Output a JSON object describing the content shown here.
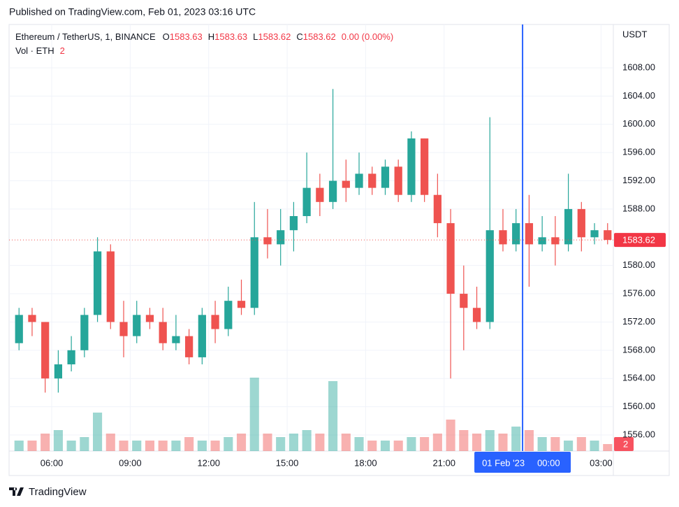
{
  "header": {
    "published": "Published on TradingView.com, Feb 01, 2023 03:16 UTC"
  },
  "footer": {
    "brand": "TradingView"
  },
  "chart_data": {
    "type": "candlestick",
    "symbol": "Ethereum / TetherUS, 1, BINANCE",
    "legend": {
      "o_label": "O",
      "open": 1583.63,
      "h_label": "H",
      "high": 1583.63,
      "l_label": "L",
      "low": 1583.62,
      "c_label": "C",
      "close": 1583.62,
      "change": "0.00 (0.00%)",
      "vol_label": "Vol · ETH",
      "volume": 2
    },
    "price_unit": "USDT",
    "last_price": 1583.62,
    "crosshair": {
      "x": 24,
      "date": "01 Feb '23",
      "time": "00:00",
      "color": "#2962ff"
    },
    "up_color": "#26a69a",
    "down_color": "#ef5350",
    "x": [
      4.75,
      5.25,
      5.75,
      6.25,
      6.75,
      7.25,
      7.75,
      8.25,
      8.75,
      9.25,
      9.75,
      10.25,
      10.75,
      11.25,
      11.75,
      12.25,
      12.75,
      13.25,
      13.75,
      14.25,
      14.75,
      15.25,
      15.75,
      16.25,
      16.75,
      17.25,
      17.75,
      18.25,
      18.75,
      19.25,
      19.75,
      20.25,
      20.75,
      21.25,
      21.75,
      22.25,
      22.75,
      23.25,
      23.75,
      24.25,
      24.75,
      25.25,
      25.75,
      26.25,
      26.75,
      27.25
    ],
    "open": [
      1569,
      1573,
      1572,
      1564,
      1566,
      1568,
      1573,
      1582,
      1572,
      1570,
      1573,
      1572,
      1569,
      1570,
      1567,
      1573,
      1571,
      1575,
      1574,
      1584,
      1583,
      1585,
      1587,
      1591,
      1589,
      1592,
      1591,
      1593,
      1591,
      1594,
      1590,
      1598,
      1590,
      1586,
      1576,
      1574,
      1572,
      1585,
      1583,
      1586,
      1583,
      1584,
      1583,
      1588,
      1584,
      1585
    ],
    "high": [
      1574,
      1574,
      1572,
      1568,
      1570,
      1574,
      1584,
      1583,
      1575,
      1575,
      1574,
      1574,
      1573,
      1571,
      1574,
      1575,
      1577,
      1578,
      1589,
      1588,
      1588,
      1589,
      1596,
      1593,
      1605,
      1595,
      1596,
      1594,
      1595,
      1595,
      1599,
      1598,
      1593,
      1588,
      1580,
      1577,
      1601,
      1588,
      1588,
      1590,
      1587,
      1587,
      1593,
      1589,
      1586,
      1586
    ],
    "low": [
      1568,
      1570,
      1562,
      1562,
      1565,
      1567,
      1572,
      1571,
      1567,
      1569,
      1571,
      1568,
      1568,
      1566,
      1566,
      1569,
      1570,
      1573,
      1573,
      1581,
      1580,
      1582,
      1586,
      1587,
      1588,
      1589,
      1590,
      1590,
      1590,
      1589,
      1589,
      1589,
      1584,
      1564,
      1568,
      1571,
      1571,
      1582,
      1582,
      1577,
      1582,
      1580,
      1582,
      1582,
      1583,
      1583
    ],
    "close": [
      1573,
      1572,
      1564,
      1566,
      1568,
      1573,
      1582,
      1572,
      1570,
      1573,
      1572,
      1569,
      1570,
      1567,
      1573,
      1571,
      1575,
      1574,
      1584,
      1583,
      1585,
      1587,
      1591,
      1589,
      1592,
      1591,
      1593,
      1591,
      1594,
      1590,
      1598,
      1590,
      1586,
      1576,
      1574,
      1572,
      1585,
      1583,
      1586,
      1583,
      1584,
      1583,
      1588,
      1584,
      1585,
      1583.62
    ],
    "volume": [
      3,
      3,
      5,
      6,
      3,
      4,
      11,
      5,
      3,
      3,
      3,
      3,
      3,
      4,
      3,
      3,
      4,
      5,
      21,
      5,
      4,
      5,
      6,
      5,
      20,
      5,
      4,
      3,
      3,
      3,
      4,
      4,
      5,
      9,
      6,
      5,
      6,
      5,
      7,
      6,
      4,
      4,
      3,
      4,
      3,
      2
    ],
    "xlim": [
      4.37,
      27.47
    ],
    "ylim": [
      1553.72,
      1614.14
    ],
    "vol_ylim": [
      0,
      122
    ],
    "xticks": [
      {
        "value": 6,
        "label": "06:00"
      },
      {
        "value": 9,
        "label": "09:00"
      },
      {
        "value": 12,
        "label": "12:00"
      },
      {
        "value": 15,
        "label": "15:00"
      },
      {
        "value": 18,
        "label": "18:00"
      },
      {
        "value": 21,
        "label": "21:00"
      },
      {
        "value": 27,
        "label": "03:00"
      }
    ],
    "yticks": [
      {
        "value": 1556,
        "label": "1556.00"
      },
      {
        "value": 1560,
        "label": "1560.00"
      },
      {
        "value": 1564,
        "label": "1564.00"
      },
      {
        "value": 1568,
        "label": "1568.00"
      },
      {
        "value": 1572,
        "label": "1572.00"
      },
      {
        "value": 1576,
        "label": "1576.00"
      },
      {
        "value": 1580,
        "label": "1580.00"
      },
      {
        "value": 1588,
        "label": "1588.00"
      },
      {
        "value": 1592,
        "label": "1592.00"
      },
      {
        "value": 1596,
        "label": "1596.00"
      },
      {
        "value": 1600,
        "label": "1600.00"
      },
      {
        "value": 1604,
        "label": "1604.00"
      },
      {
        "value": 1608,
        "label": "1608.00"
      }
    ],
    "grid": true
  }
}
